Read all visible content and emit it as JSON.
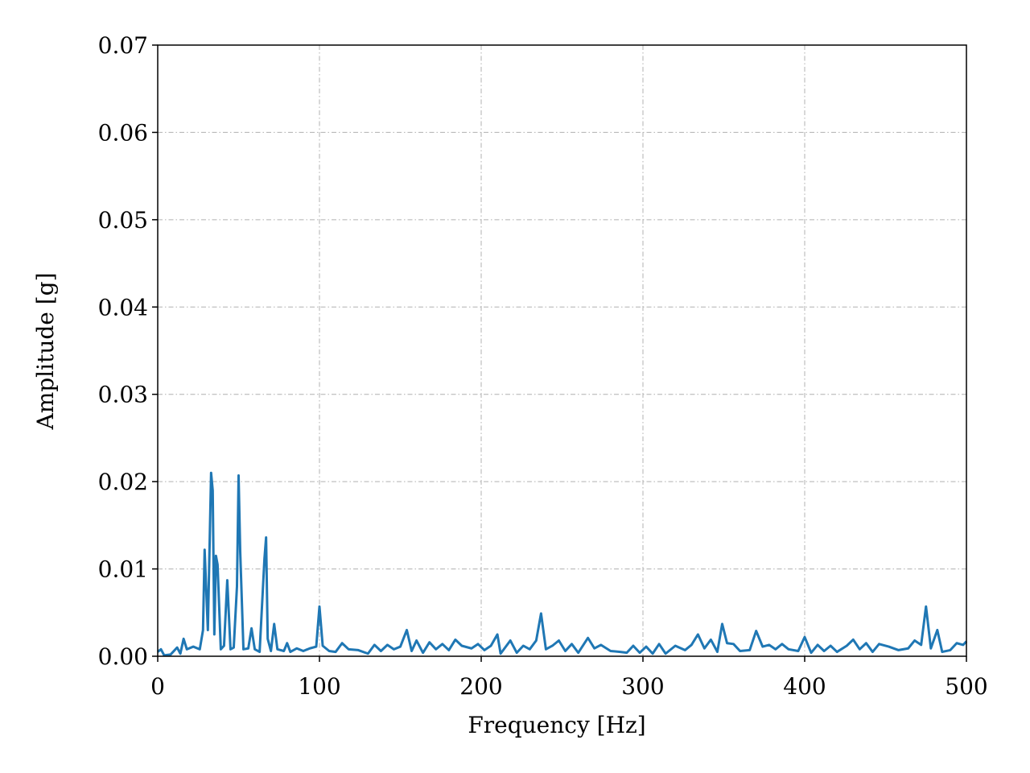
{
  "chart_data": {
    "type": "line",
    "xlabel": "Frequency [Hz]",
    "ylabel": "Amplitude [g]",
    "color": "#1f77b4",
    "grid": true,
    "xlim": [
      0,
      500
    ],
    "xticks": [
      0,
      100,
      200,
      300,
      400,
      500
    ],
    "ylim": [
      0,
      0.07
    ],
    "yticks": [
      {
        "value": 0,
        "label": "0.00"
      },
      {
        "value": 0.01,
        "label": "0.01"
      },
      {
        "value": 0.02,
        "label": "0.02"
      },
      {
        "value": 0.03,
        "label": "0.03"
      },
      {
        "value": 0.04,
        "label": "0.04"
      },
      {
        "value": 0.05,
        "label": "0.05"
      },
      {
        "value": 0.06,
        "label": "0.06"
      },
      {
        "value": 0.07,
        "label": "0.07"
      }
    ],
    "x": [
      0,
      2,
      4,
      8,
      12,
      14,
      16,
      18,
      22,
      26,
      28,
      29,
      31,
      33,
      34,
      35,
      36,
      37,
      39,
      41,
      43,
      45,
      47,
      49,
      50,
      51,
      53,
      56,
      58,
      60,
      63,
      66,
      67,
      68,
      70,
      72,
      74,
      78,
      80,
      82,
      86,
      90,
      94,
      98,
      100,
      102,
      106,
      110,
      114,
      118,
      124,
      130,
      134,
      138,
      142,
      146,
      150,
      154,
      157,
      160,
      164,
      168,
      172,
      176,
      180,
      184,
      188,
      194,
      198,
      202,
      206,
      210,
      212,
      218,
      222,
      226,
      230,
      234,
      237,
      240,
      244,
      248,
      252,
      256,
      260,
      266,
      270,
      274,
      280,
      286,
      290,
      294,
      298,
      302,
      306,
      310,
      314,
      320,
      326,
      330,
      334,
      338,
      342,
      346,
      349,
      352,
      356,
      360,
      366,
      370,
      374,
      378,
      382,
      386,
      390,
      396,
      400,
      404,
      408,
      412,
      416,
      420,
      426,
      430,
      434,
      438,
      442,
      446,
      452,
      458,
      464,
      468,
      472,
      475,
      478,
      482,
      485,
      490,
      494,
      498,
      500
    ],
    "values": [
      0.0005,
      0.0008,
      0.0001,
      0.0002,
      0.001,
      0.0003,
      0.002,
      0.0008,
      0.0011,
      0.0008,
      0.003,
      0.0122,
      0.003,
      0.021,
      0.019,
      0.0025,
      0.0115,
      0.0105,
      0.0008,
      0.0012,
      0.0087,
      0.0008,
      0.001,
      0.008,
      0.0207,
      0.012,
      0.0008,
      0.0009,
      0.0032,
      0.0008,
      0.0005,
      0.0112,
      0.0136,
      0.002,
      0.0006,
      0.0037,
      0.0008,
      0.0006,
      0.0015,
      0.0005,
      0.0009,
      0.0006,
      0.0009,
      0.0011,
      0.0057,
      0.0012,
      0.0006,
      0.0005,
      0.0015,
      0.0008,
      0.0007,
      0.0003,
      0.0013,
      0.0006,
      0.0013,
      0.0008,
      0.0011,
      0.003,
      0.0006,
      0.0018,
      0.0004,
      0.0016,
      0.0008,
      0.0014,
      0.0007,
      0.0019,
      0.0012,
      0.0009,
      0.0014,
      0.0007,
      0.0012,
      0.0025,
      0.0003,
      0.0018,
      0.0004,
      0.0012,
      0.0008,
      0.0018,
      0.0049,
      0.0008,
      0.0012,
      0.0018,
      0.0006,
      0.0014,
      0.0004,
      0.0021,
      0.0009,
      0.0013,
      0.0006,
      0.0005,
      0.0004,
      0.0012,
      0.0004,
      0.0011,
      0.0003,
      0.0014,
      0.0003,
      0.0012,
      0.0007,
      0.0013,
      0.0025,
      0.0009,
      0.0019,
      0.0005,
      0.0037,
      0.0015,
      0.0014,
      0.0006,
      0.0007,
      0.0029,
      0.0011,
      0.0013,
      0.0008,
      0.0014,
      0.0008,
      0.0006,
      0.0022,
      0.0004,
      0.0013,
      0.0006,
      0.0012,
      0.0005,
      0.0012,
      0.0019,
      0.0008,
      0.0015,
      0.0005,
      0.0014,
      0.0011,
      0.0007,
      0.0009,
      0.0018,
      0.0013,
      0.0057,
      0.0009,
      0.003,
      0.0005,
      0.0007,
      0.0015,
      0.0013,
      0.0017
    ]
  }
}
